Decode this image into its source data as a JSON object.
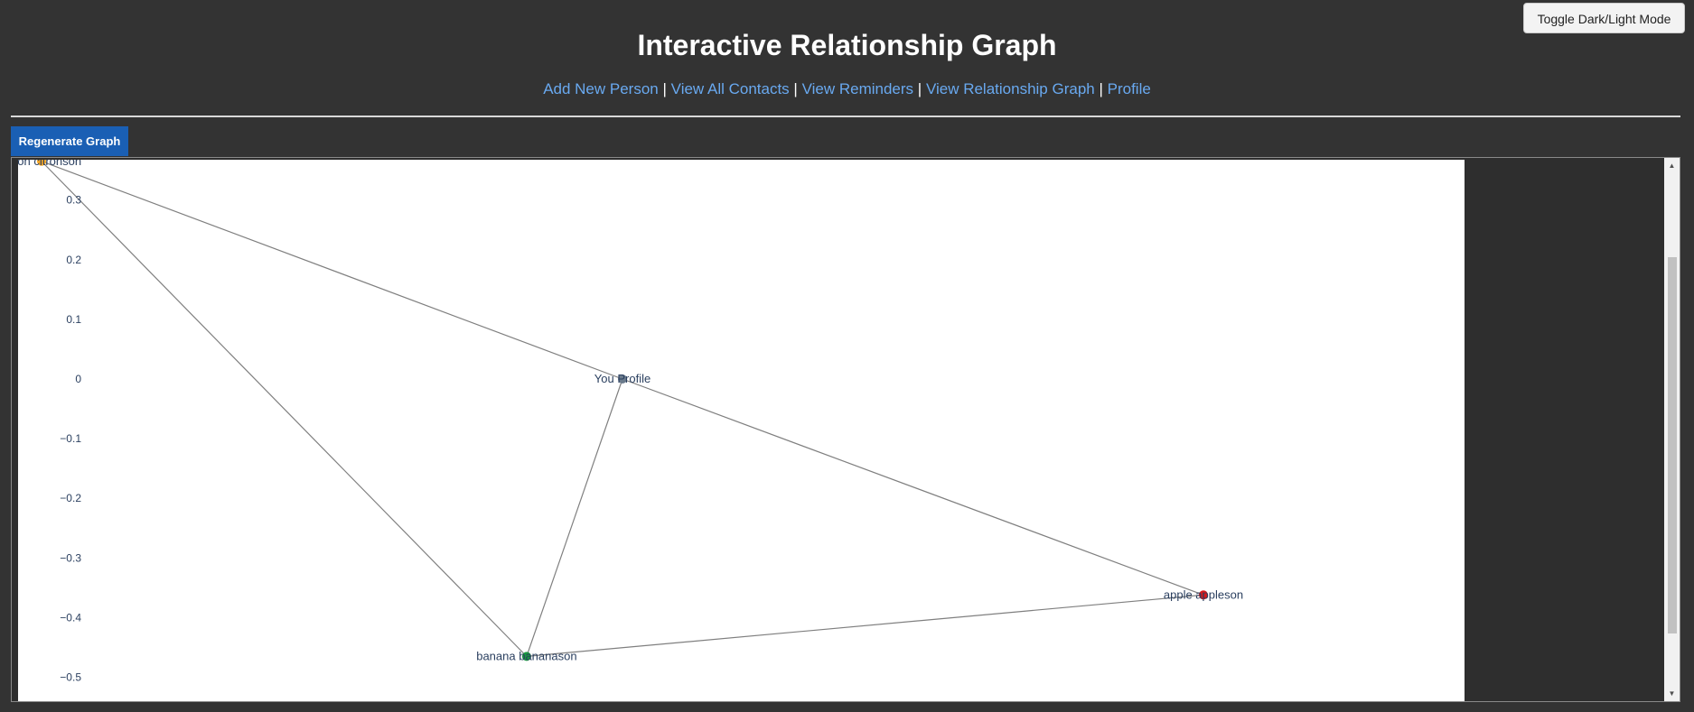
{
  "header": {
    "title": "Interactive Relationship Graph",
    "toggle_label": "Toggle Dark/Light Mode"
  },
  "nav": {
    "items": [
      {
        "label": "Add New Person"
      },
      {
        "label": "View All Contacts"
      },
      {
        "label": "View Reminders"
      },
      {
        "label": "View Relationship Graph"
      },
      {
        "label": "Profile"
      }
    ],
    "separator": "|"
  },
  "toolbar": {
    "regenerate_label": "Regenerate Graph"
  },
  "colors": {
    "background": "#333333",
    "link": "#69a9f0",
    "button": "#1a5fb4"
  },
  "chart_data": {
    "type": "scatter",
    "nodes": [
      {
        "label": "citron citronson",
        "x": -1.0,
        "y": 0.365,
        "color": "#f5a623"
      },
      {
        "label": "You Profile",
        "x": 0.0,
        "y": 0.0,
        "color": "#6b7b8c"
      },
      {
        "label": "apple appleson",
        "x": 1.0,
        "y": -0.362,
        "color": "#d7191c"
      },
      {
        "label": "banana bananason",
        "x": -0.165,
        "y": -0.465,
        "color": "#1a9641"
      }
    ],
    "edges": [
      [
        "citron citronson",
        "You Profile"
      ],
      [
        "citron citronson",
        "banana bananason"
      ],
      [
        "You Profile",
        "apple appleson"
      ],
      [
        "You Profile",
        "banana bananason"
      ],
      [
        "banana bananason",
        "apple appleson"
      ]
    ],
    "y_ticks": [
      0.3,
      0.2,
      0.1,
      0,
      -0.1,
      -0.2,
      -0.3,
      -0.4,
      -0.5
    ],
    "y_tick_labels": [
      "0.3",
      "0.2",
      "0.1",
      "0",
      "−0.1",
      "−0.2",
      "−0.3",
      "−0.4",
      "−0.5"
    ],
    "xlim": [
      -1.25,
      1.25
    ],
    "ylim": [
      -0.52,
      0.38
    ],
    "grid": false,
    "edge_color": "#7f7f7f",
    "label_color": "#2a3f5f"
  }
}
